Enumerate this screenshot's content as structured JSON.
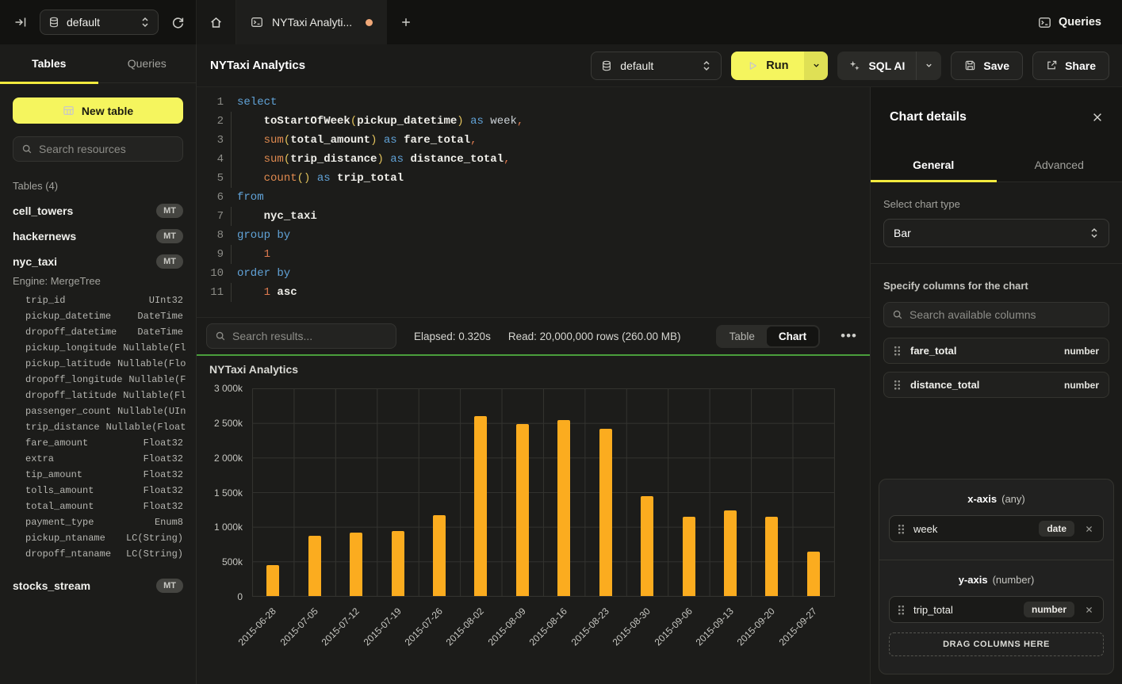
{
  "topbar": {
    "database": "default",
    "tab_title": "NYTaxi Analyti...",
    "queries_label": "Queries"
  },
  "sidebar": {
    "tables_tab": "Tables",
    "queries_tab": "Queries",
    "new_table_label": "New table",
    "search_placeholder": "Search resources",
    "section_label": "Tables (4)",
    "tables": [
      {
        "name": "cell_towers",
        "badge": "MT"
      },
      {
        "name": "hackernews",
        "badge": "MT"
      },
      {
        "name": "nyc_taxi",
        "badge": "MT",
        "engine": "Engine: MergeTree",
        "columns": [
          {
            "name": "trip_id",
            "type": "UInt32"
          },
          {
            "name": "pickup_datetime",
            "type": "DateTime"
          },
          {
            "name": "dropoff_datetime",
            "type": "DateTime"
          },
          {
            "name": "pickup_longitude",
            "type": "Nullable(Fl"
          },
          {
            "name": "pickup_latitude",
            "type": "Nullable(Flo"
          },
          {
            "name": "dropoff_longitude",
            "type": "Nullable(F"
          },
          {
            "name": "dropoff_latitude",
            "type": "Nullable(Fl"
          },
          {
            "name": "passenger_count",
            "type": "Nullable(UIn"
          },
          {
            "name": "trip_distance",
            "type": "Nullable(Float"
          },
          {
            "name": "fare_amount",
            "type": "Float32"
          },
          {
            "name": "extra",
            "type": "Float32"
          },
          {
            "name": "tip_amount",
            "type": "Float32"
          },
          {
            "name": "tolls_amount",
            "type": "Float32"
          },
          {
            "name": "total_amount",
            "type": "Float32"
          },
          {
            "name": "payment_type",
            "type": "Enum8"
          },
          {
            "name": "pickup_ntaname",
            "type": "LC(String)"
          },
          {
            "name": "dropoff_ntaname",
            "type": "LC(String)"
          }
        ]
      },
      {
        "name": "stocks_stream",
        "badge": "MT"
      }
    ]
  },
  "header": {
    "title": "NYTaxi Analytics",
    "database": "default",
    "run_label": "Run",
    "sql_ai_label": "SQL AI",
    "save_label": "Save",
    "share_label": "Share"
  },
  "editor": {
    "lines": [
      {
        "n": 1,
        "guide": false,
        "tokens": [
          [
            "kw",
            "select"
          ]
        ]
      },
      {
        "n": 2,
        "guide": true,
        "tokens": [
          [
            "sp",
            "    "
          ],
          [
            "id",
            "toStartOfWeek"
          ],
          [
            "paren",
            "("
          ],
          [
            "id",
            "pickup_datetime"
          ],
          [
            "paren",
            ")"
          ],
          [
            "kw",
            " as"
          ],
          [
            "alias",
            " week"
          ],
          [
            "punct",
            ","
          ]
        ]
      },
      {
        "n": 3,
        "guide": true,
        "tokens": [
          [
            "sp",
            "    "
          ],
          [
            "fn",
            "sum"
          ],
          [
            "paren",
            "("
          ],
          [
            "id",
            "total_amount"
          ],
          [
            "paren",
            ")"
          ],
          [
            "kw",
            " as"
          ],
          [
            "id",
            " fare_total"
          ],
          [
            "punct",
            ","
          ]
        ]
      },
      {
        "n": 4,
        "guide": true,
        "tokens": [
          [
            "sp",
            "    "
          ],
          [
            "fn",
            "sum"
          ],
          [
            "paren",
            "("
          ],
          [
            "id",
            "trip_distance"
          ],
          [
            "paren",
            ")"
          ],
          [
            "kw",
            " as"
          ],
          [
            "id",
            " distance_total"
          ],
          [
            "punct",
            ","
          ]
        ]
      },
      {
        "n": 5,
        "guide": true,
        "tokens": [
          [
            "sp",
            "    "
          ],
          [
            "fn",
            "count"
          ],
          [
            "paren",
            "()"
          ],
          [
            "kw",
            " as"
          ],
          [
            "id",
            " trip_total"
          ]
        ]
      },
      {
        "n": 6,
        "guide": false,
        "tokens": [
          [
            "kw",
            "from"
          ]
        ]
      },
      {
        "n": 7,
        "guide": true,
        "tokens": [
          [
            "sp",
            "    "
          ],
          [
            "id",
            "nyc_taxi"
          ]
        ]
      },
      {
        "n": 8,
        "guide": false,
        "tokens": [
          [
            "kw",
            "group by"
          ]
        ]
      },
      {
        "n": 9,
        "guide": true,
        "tokens": [
          [
            "sp",
            "    "
          ],
          [
            "num",
            "1"
          ]
        ]
      },
      {
        "n": 10,
        "guide": false,
        "tokens": [
          [
            "kw",
            "order by"
          ]
        ]
      },
      {
        "n": 11,
        "guide": true,
        "tokens": [
          [
            "sp",
            "    "
          ],
          [
            "num",
            "1"
          ],
          [
            "id",
            " asc"
          ]
        ]
      }
    ]
  },
  "results": {
    "search_placeholder": "Search results...",
    "elapsed": "Elapsed: 0.320s",
    "read": "Read: 20,000,000 rows (260.00 MB)",
    "table_label": "Table",
    "chart_label": "Chart",
    "active_view": "Chart",
    "more_label": "•••"
  },
  "chart_data": {
    "type": "bar",
    "title": "NYTaxi Analytics",
    "x_field": "week",
    "y_field": "trip_total",
    "categories": [
      "2015-06-28",
      "2015-07-05",
      "2015-07-12",
      "2015-07-19",
      "2015-07-26",
      "2015-08-02",
      "2015-08-09",
      "2015-08-16",
      "2015-08-23",
      "2015-08-30",
      "2015-09-06",
      "2015-09-13",
      "2015-09-20",
      "2015-09-27"
    ],
    "values": [
      450000,
      870000,
      920000,
      940000,
      1170000,
      2600000,
      2480000,
      2540000,
      2420000,
      1440000,
      1150000,
      1240000,
      1150000,
      640000
    ],
    "ylim": [
      0,
      3000000
    ],
    "y_ticks": [
      "3 000k",
      "2 500k",
      "2 000k",
      "1 500k",
      "1 000k",
      "500k",
      "0"
    ],
    "xlabel": "",
    "ylabel": "",
    "grid": true,
    "legend": false,
    "bar_color": "#fbac1f"
  },
  "chart_panel": {
    "title": "Chart details",
    "general_tab": "General",
    "advanced_tab": "Advanced",
    "active_tab": "General",
    "chart_type_label": "Select chart type",
    "chart_type_value": "Bar",
    "columns_label": "Specify columns for the chart",
    "search_placeholder": "Search available columns",
    "available_columns": [
      {
        "name": "fare_total",
        "type": "number"
      },
      {
        "name": "distance_total",
        "type": "number"
      }
    ],
    "x_axis_label": "x-axis",
    "x_axis_hint": "(any)",
    "x_axis_column": {
      "name": "week",
      "type": "date"
    },
    "y_axis_label": "y-axis",
    "y_axis_hint": "(number)",
    "y_axis_column": {
      "name": "trip_total",
      "type": "number"
    },
    "drop_zone_label": "DRAG COLUMNS HERE"
  },
  "colors": {
    "accent_yellow": "#f5f55e",
    "tab_underline_yellow": "#f2ea3e",
    "bar_color": "#fbac1f",
    "success_green": "#4a9e3c",
    "tab_dot_orange": "#f0a878"
  }
}
